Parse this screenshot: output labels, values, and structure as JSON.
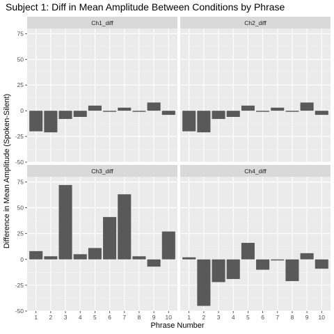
{
  "chart_data": {
    "type": "bar",
    "title": "Subject 1: Diff in Mean Amplitude Between Conditions by Phrase",
    "xlabel": "Phrase Number",
    "ylabel": "Difference in Mean Amplitude (Spoken-Silent)",
    "categories": [
      "1",
      "2",
      "3",
      "4",
      "5",
      "6",
      "7",
      "8",
      "9",
      "10"
    ],
    "ylim": [
      -50,
      80
    ],
    "yticks": [
      -50,
      -25,
      0,
      25,
      50,
      75
    ],
    "ytick_labels": [
      "-50",
      "-25",
      "0",
      "25",
      "50",
      "75"
    ],
    "grid": true,
    "bar_color": "#595959",
    "panel_background": "#ebebeb",
    "strip_background": "#d9d9d9",
    "facets": [
      {
        "name": "Ch1_diff",
        "values": [
          -20,
          -21,
          -8,
          -6,
          5,
          -1,
          3,
          -1,
          8,
          -4
        ]
      },
      {
        "name": "Ch2_diff",
        "values": [
          -20,
          -21,
          -8,
          -6,
          5,
          -1,
          3,
          -1,
          8,
          -4
        ]
      },
      {
        "name": "Ch3_diff",
        "values": [
          8,
          3,
          72,
          5,
          11,
          41,
          63,
          3,
          -7,
          27
        ]
      },
      {
        "name": "Ch4_diff",
        "values": [
          2,
          -45,
          -22,
          -19,
          16,
          -10,
          -1,
          -21,
          6,
          -9
        ]
      }
    ]
  }
}
